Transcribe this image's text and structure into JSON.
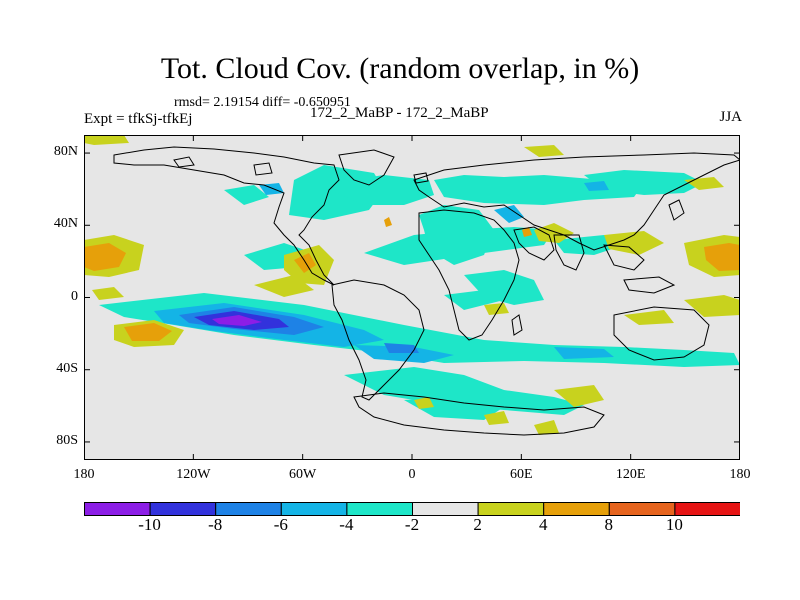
{
  "header": {
    "title": "Tot. Cloud Cov. (random overlap, in %)",
    "stats": "rmsd= 2.19154 diff= -0.650951",
    "experiment": "Expt = tfkSj-tfkEj",
    "comparison": "172_2_MaBP - 172_2_MaBP",
    "season": "JJA"
  },
  "axes": {
    "lat_ticks": [
      {
        "value": 80,
        "label": "80N"
      },
      {
        "value": 40,
        "label": "40N"
      },
      {
        "value": 0,
        "label": "0"
      },
      {
        "value": -40,
        "label": "40S"
      },
      {
        "value": -80,
        "label": "80S"
      }
    ],
    "lon_ticks": [
      {
        "value": -180,
        "label": "180"
      },
      {
        "value": -120,
        "label": "120W"
      },
      {
        "value": -60,
        "label": "60W"
      },
      {
        "value": 0,
        "label": "0"
      },
      {
        "value": 60,
        "label": "60E"
      },
      {
        "value": 120,
        "label": "120E"
      },
      {
        "value": 180,
        "label": "180"
      }
    ],
    "lon_range": [
      -180,
      180
    ],
    "lat_range": [
      -90,
      90
    ]
  },
  "colorbar": {
    "levels": [
      "-10",
      "-8",
      "-6",
      "-4",
      "-2",
      "2",
      "4",
      "8",
      "10"
    ],
    "colors": [
      "#8c1ee6",
      "#3232dc",
      "#1e82e6",
      "#14b4e6",
      "#1ee6c8",
      "#e6e6e6",
      "#c8d21e",
      "#e6a00a",
      "#e6641e",
      "#e61414"
    ]
  },
  "map": {
    "background_color": "#e6e6e6",
    "coastline_color": "#000000"
  }
}
